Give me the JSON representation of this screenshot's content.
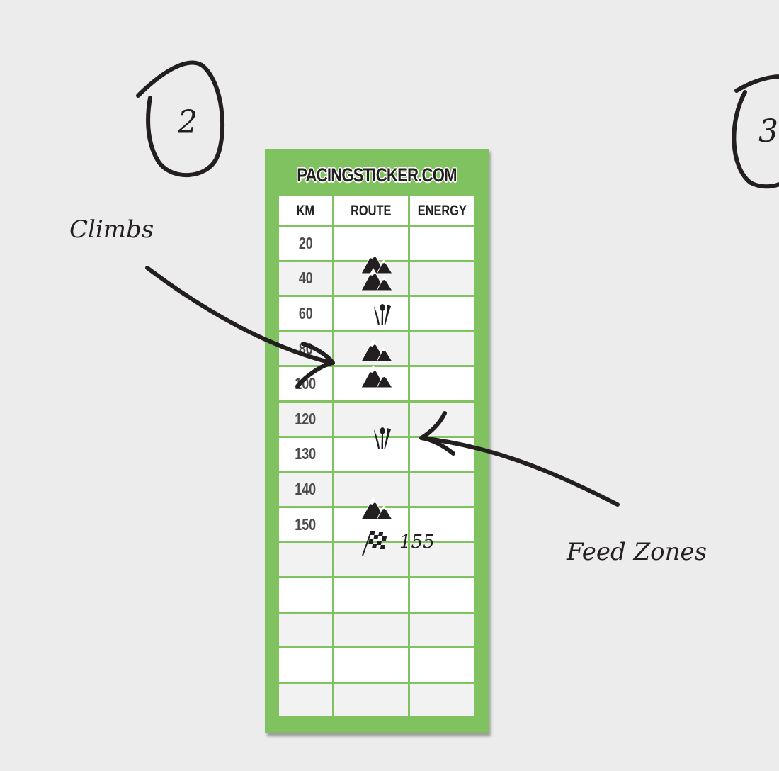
{
  "step_markers": [
    "2",
    "3"
  ],
  "annotations": {
    "climbs": "Climbs",
    "feed_zones": "Feed Zones"
  },
  "sticker": {
    "brand": "PACINGSTICKER.COM",
    "colors": {
      "green": "#80c260",
      "row_light": "#ffffff",
      "row_alt": "#f2f2f2",
      "ink": "#231f20"
    },
    "headers": [
      "KM",
      "ROUTE",
      "ENERGY"
    ],
    "km_rows": [
      "20",
      "40",
      "60",
      "80",
      "100",
      "120",
      "130",
      "140",
      "150",
      "",
      "",
      "",
      "",
      ""
    ],
    "route_icons": [
      {
        "icon": "mountain-icon",
        "km": 30
      },
      {
        "icon": "mountain-icon",
        "km": 40
      },
      {
        "icon": "cutlery-icon",
        "km": 60
      },
      {
        "icon": "mountain-icon",
        "km": 80
      },
      {
        "icon": "mountain-icon",
        "km": 95
      },
      {
        "icon": "cutlery-icon",
        "km": 125
      },
      {
        "icon": "mountain-icon",
        "km": 145
      },
      {
        "icon": "finish-flag-icon",
        "km": 155
      }
    ],
    "finish_label": "155"
  }
}
